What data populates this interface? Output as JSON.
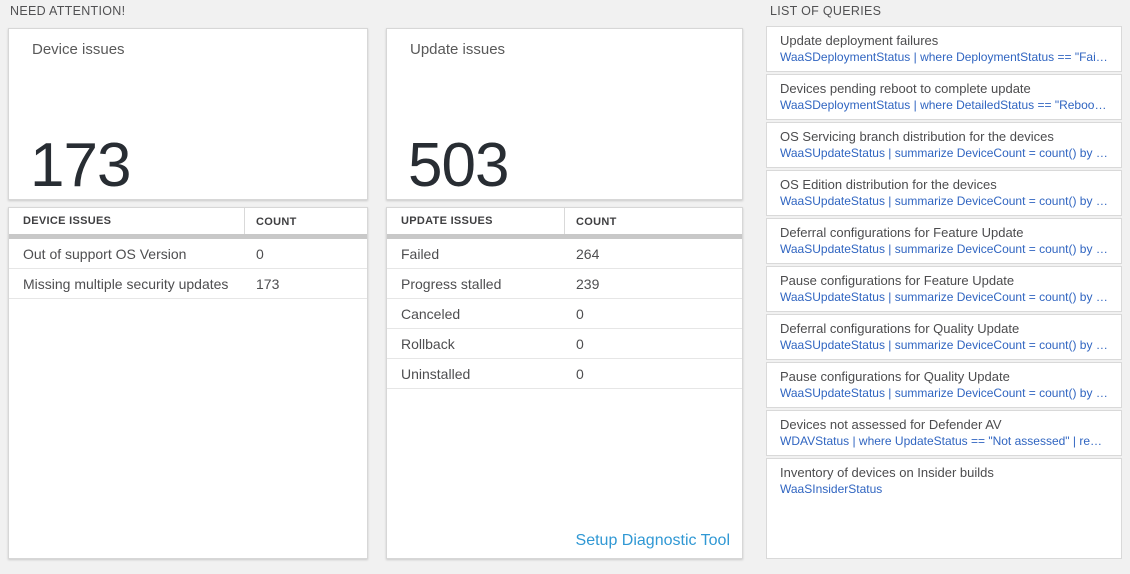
{
  "need_attention": {
    "header": "NEED ATTENTION!",
    "device_card": {
      "title": "Device issues",
      "big_number": "173"
    },
    "device_table": {
      "columns": {
        "c1": "DEVICE ISSUES",
        "c2": "COUNT"
      },
      "rows": [
        {
          "label": "Out of support OS Version",
          "count": "0"
        },
        {
          "label": "Missing multiple security updates",
          "count": "173"
        }
      ]
    },
    "update_card": {
      "title": "Update issues",
      "big_number": "503"
    },
    "update_table": {
      "columns": {
        "c1": "UPDATE ISSUES",
        "c2": "COUNT"
      },
      "rows": [
        {
          "label": "Failed",
          "count": "264"
        },
        {
          "label": "Progress stalled",
          "count": "239"
        },
        {
          "label": "Canceled",
          "count": "0"
        },
        {
          "label": "Rollback",
          "count": "0"
        },
        {
          "label": "Uninstalled",
          "count": "0"
        }
      ],
      "link_label": "Setup Diagnostic Tool"
    }
  },
  "queries": {
    "header": "LIST OF QUERIES",
    "items": [
      {
        "title": "Update deployment failures",
        "query": "WaaSDeploymentStatus | where DeploymentStatus == \"Failed\" |..."
      },
      {
        "title": "Devices pending reboot to complete update",
        "query": "WaaSDeploymentStatus | where DetailedStatus == \"Reboot pend..."
      },
      {
        "title": "OS Servicing branch distribution for the devices",
        "query": "WaaSUpdateStatus | summarize DeviceCount = count() by OSSer..."
      },
      {
        "title": "OS Edition distribution for the devices",
        "query": "WaaSUpdateStatus | summarize DeviceCount = count() by OSEdit..."
      },
      {
        "title": "Deferral configurations for Feature Update",
        "query": "WaaSUpdateStatus | summarize DeviceCount = count() by Featur..."
      },
      {
        "title": "Pause configurations for Feature Update",
        "query": "WaaSUpdateStatus | summarize DeviceCount = count() by Featur..."
      },
      {
        "title": "Deferral configurations for Quality Update",
        "query": "WaaSUpdateStatus | summarize DeviceCount = count() by Qualit..."
      },
      {
        "title": "Pause configurations for Quality Update",
        "query": "WaaSUpdateStatus | summarize DeviceCount = count() by Qualit..."
      },
      {
        "title": "Devices not assessed for Defender AV",
        "query": "WDAVStatus | where UpdateStatus == \"Not assessed\" | render ta..."
      },
      {
        "title": "Inventory of devices on Insider builds",
        "query": "WaaSInsiderStatus"
      }
    ]
  },
  "colors": {
    "page_background": "#f1f1f1",
    "big_number": "#282d33",
    "query_link_blue": "#3065c1",
    "diagnostic_link_blue": "#3098d4",
    "table_header_bar": "#c8c8c8"
  }
}
